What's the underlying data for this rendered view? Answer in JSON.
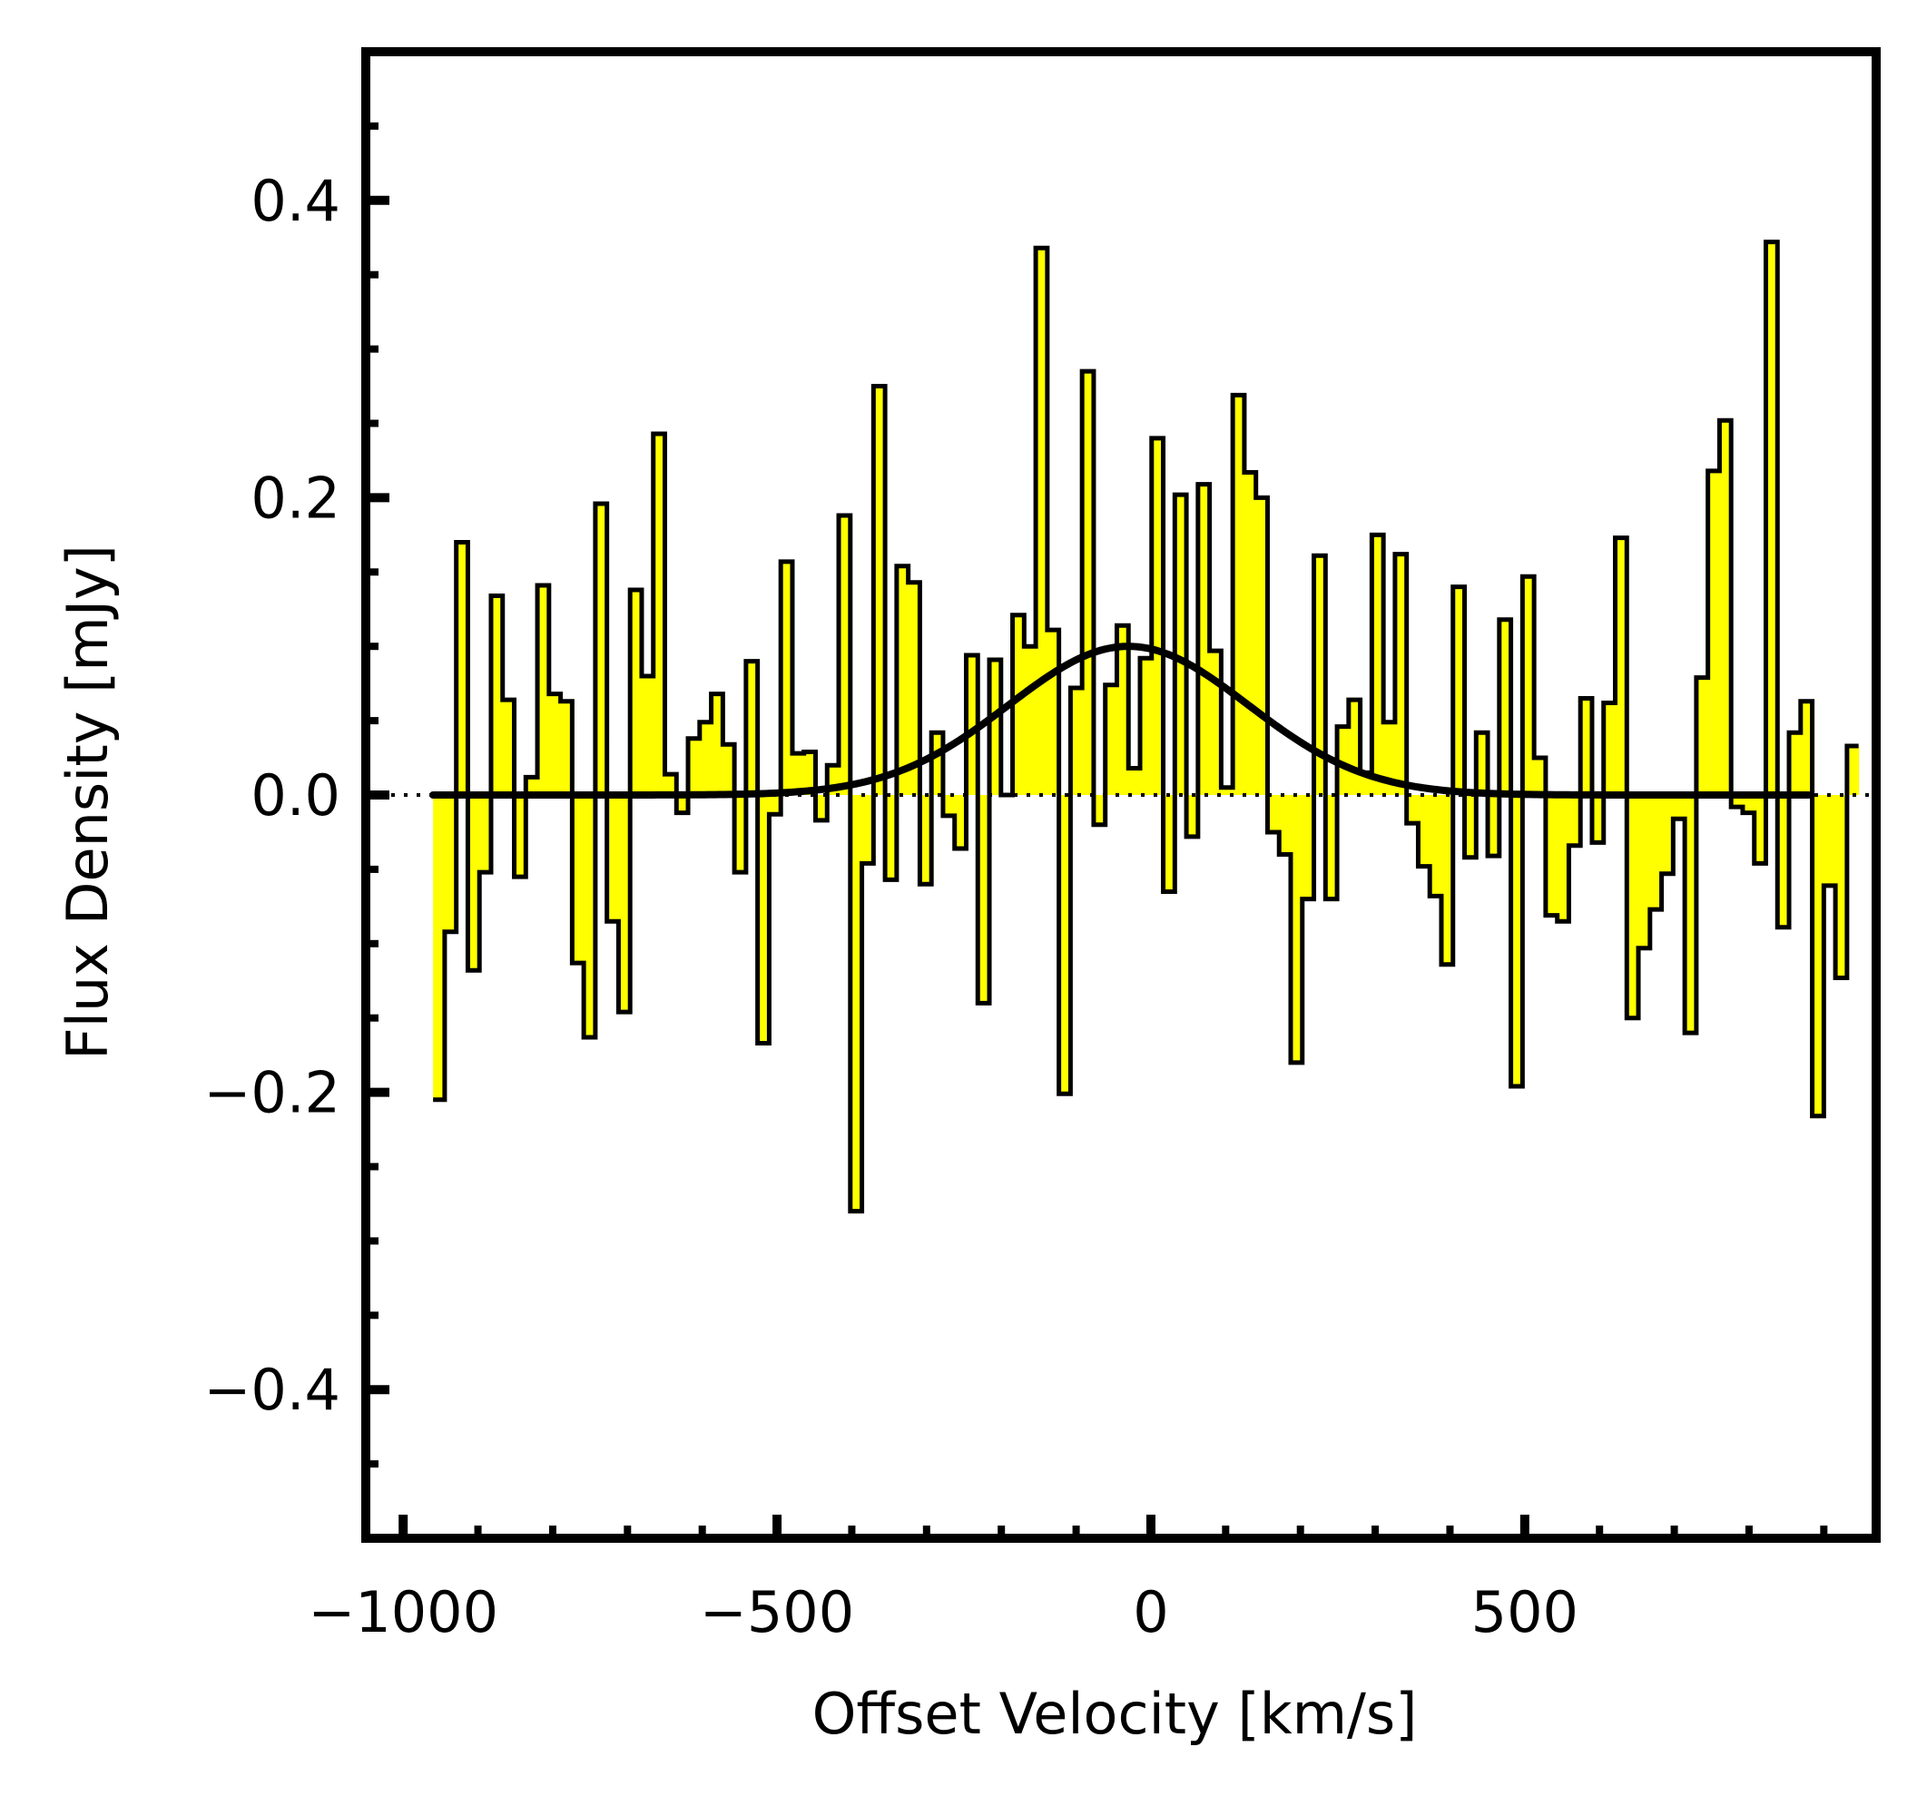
{
  "chart_data": {
    "type": "line",
    "subtype": "step-histogram",
    "title": "",
    "xlabel": "Offset Velocity [km/s]",
    "ylabel": "Flux Density [mJy]",
    "xlim": [
      -1050,
      970
    ],
    "ylim": [
      -0.5,
      0.5
    ],
    "xticks": [
      -1000,
      -500,
      0,
      500
    ],
    "xtick_labels": [
      "−1000",
      "−500",
      "0",
      "500"
    ],
    "yticks": [
      -0.4,
      -0.2,
      0.0,
      0.2,
      0.4
    ],
    "ytick_labels": [
      "−0.4",
      "−0.2",
      "0.0",
      "0.2",
      "0.4"
    ],
    "x_minor_step": 100,
    "y_minor_step": 0.05,
    "zero_line": {
      "value": 0.0,
      "style": "dotted"
    },
    "grid": false,
    "fill_color": "#ffff00",
    "edge_color": "#000000",
    "bin_start": -960,
    "bin_width": 15.5,
    "flux": [
      -0.205,
      -0.092,
      0.17,
      -0.118,
      -0.052,
      0.134,
      0.064,
      -0.055,
      0.012,
      0.141,
      0.068,
      0.063,
      -0.113,
      -0.163,
      0.196,
      -0.085,
      -0.146,
      0.138,
      0.08,
      0.243,
      0.014,
      -0.012,
      0.038,
      0.049,
      0.068,
      0.034,
      -0.052,
      0.09,
      -0.167,
      -0.013,
      0.157,
      0.028,
      0.029,
      -0.017,
      0.02,
      0.188,
      -0.28,
      -0.046,
      0.275,
      -0.057,
      0.154,
      0.143,
      -0.06,
      0.042,
      -0.014,
      -0.036,
      0.094,
      -0.14,
      0.091,
      0.0,
      0.121,
      0.1,
      0.368,
      0.111,
      -0.201,
      0.072,
      0.285,
      -0.02,
      0.074,
      0.114,
      0.018,
      0.092,
      0.24,
      -0.065,
      0.202,
      -0.028,
      0.209,
      0.097,
      0.005,
      0.269,
      0.217,
      0.2,
      -0.025,
      -0.04,
      -0.18,
      -0.07,
      0.161,
      -0.07,
      0.046,
      0.064,
      0.015,
      0.175,
      0.049,
      0.162,
      -0.019,
      -0.048,
      -0.068,
      -0.114,
      0.14,
      -0.042,
      0.042,
      -0.041,
      0.118,
      -0.196,
      0.147,
      0.025,
      -0.081,
      -0.085,
      -0.034,
      0.065,
      -0.032,
      0.062,
      0.173,
      -0.15,
      -0.103,
      -0.077,
      -0.053,
      -0.016,
      -0.16,
      0.079,
      0.218,
      0.252,
      -0.008,
      -0.012,
      -0.046,
      0.372,
      -0.089,
      0.042,
      0.063,
      -0.216,
      -0.061,
      -0.123,
      0.033
    ],
    "series": [
      {
        "kind": "gaussian-fit",
        "amplitude": 0.1,
        "center": -30,
        "sigma": 160,
        "x_range": [
          -960,
          880
        ],
        "color": "#000000"
      }
    ]
  }
}
